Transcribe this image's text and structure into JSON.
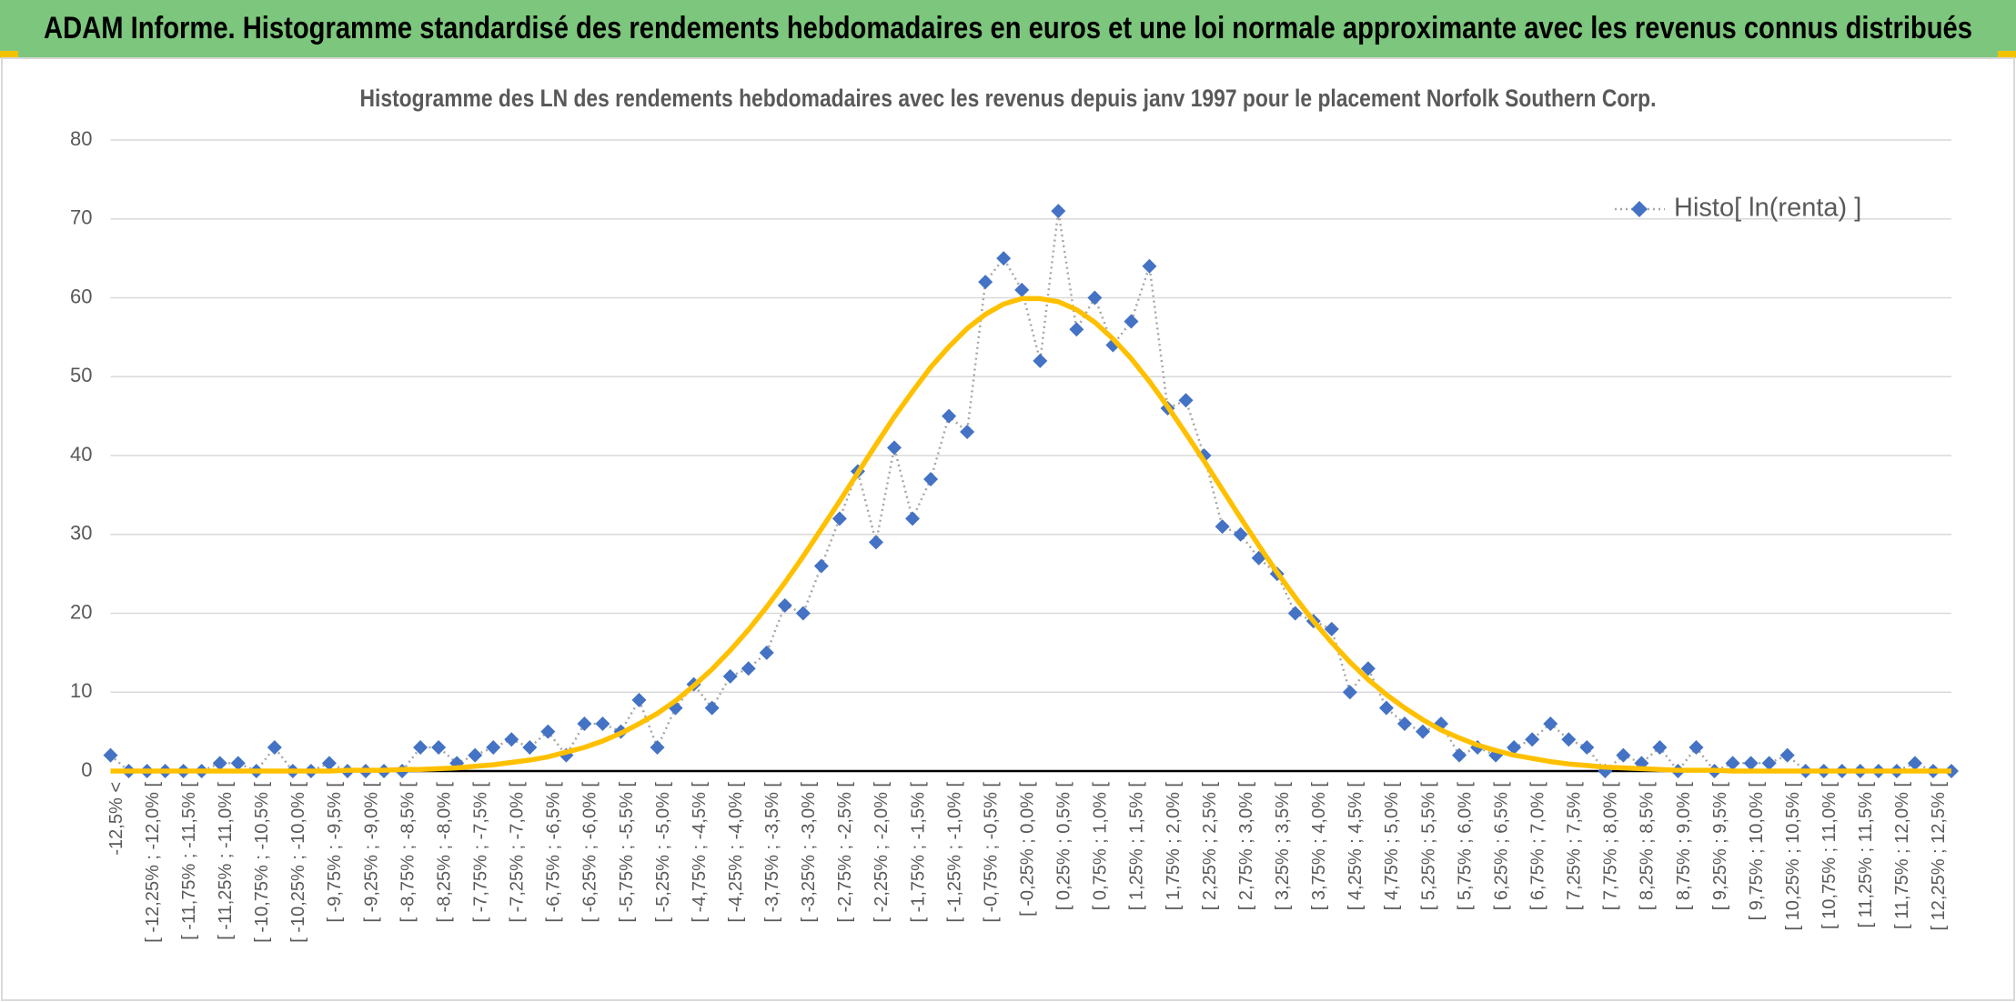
{
  "header": {
    "title": "ADAM Informe. Histogramme standardisé des rendements hebdomadaires en euros et une loi normale approximante avec les revenus connus distribués"
  },
  "chart_data": {
    "type": "line",
    "title": "Histogramme des LN des rendements hebdomadaires avec les revenus depuis janv 1997 pour le placement Norfolk Southern Corp.",
    "categories": [
      "-12,5% <",
      null,
      "[ -12,25% ; -12,0% [",
      null,
      "[ -11,75% ; -11,5% [",
      null,
      "[ -11,25% ; -11,0% [",
      null,
      "[ -10,75% ; -10,5% [",
      null,
      "[ -10,25% ; -10,0% [",
      null,
      "[ -9,75% ; -9,5% [",
      null,
      "[ -9,25% ; -9,0% [",
      null,
      "[ -8,75% ; -8,5% [",
      null,
      "[ -8,25% ; -8,0% [",
      null,
      "[ -7,75% ; -7,5% [",
      null,
      "[ -7,25% ; -7,0% [",
      null,
      "[ -6,75% ; -6,5% [",
      null,
      "[ -6,25% ; -6,0% [",
      null,
      "[ -5,75% ; -5,5% [",
      null,
      "[ -5,25% ; -5,0% [",
      null,
      "[ -4,75% ; -4,5% [",
      null,
      "[ -4,25% ; -4,0% [",
      null,
      "[ -3,75% ; -3,5% [",
      null,
      "[ -3,25% ; -3,0% [",
      null,
      "[ -2,75% ; -2,5% [",
      null,
      "[ -2,25% ; -2,0% [",
      null,
      "[ -1,75% ; -1,5% [",
      null,
      "[ -1,25% ; -1,0% [",
      null,
      "[ -0,75% ; -0,5% [",
      null,
      "[ -0,25% ; 0,0% [",
      null,
      "[ 0,25% ; 0,5% [",
      null,
      "[ 0,75% ; 1,0% [",
      null,
      "[ 1,25% ; 1,5% [",
      null,
      "[ 1,75% ; 2,0% [",
      null,
      "[ 2,25% ; 2,5% [",
      null,
      "[ 2,75% ; 3,0% [",
      null,
      "[ 3,25% ; 3,5% [",
      null,
      "[ 3,75% ; 4,0% [",
      null,
      "[ 4,25% ; 4,5% [",
      null,
      "[ 4,75% ; 5,0% [",
      null,
      "[ 5,25% ; 5,5% [",
      null,
      "[ 5,75% ; 6,0% [",
      null,
      "[ 6,25% ; 6,5% [",
      null,
      "[ 6,75% ; 7,0% [",
      null,
      "[ 7,25% ; 7,5% [",
      null,
      "[ 7,75% ; 8,0% [",
      null,
      "[ 8,25% ; 8,5% [",
      null,
      "[ 8,75% ; 9,0% [",
      null,
      "[ 9,25% ; 9,5% [",
      null,
      "[ 9,75% ; 10,0% [",
      null,
      "[ 10,25% ; 10,5% [",
      null,
      "[ 10,75% ; 11,0% [",
      null,
      "[ 11,25% ; 11,5% [",
      null,
      "[ 11,75% ; 12,0% [",
      null,
      "[ 12,25% ; 12,5% [",
      null
    ],
    "series": [
      {
        "name": "Histo[ ln(renta) ]",
        "color": "#4472c4",
        "style": "dotted-markers",
        "values": [
          2,
          0,
          0,
          0,
          0,
          0,
          1,
          1,
          0,
          3,
          0,
          0,
          1,
          0,
          0,
          0,
          0,
          3,
          3,
          1,
          2,
          3,
          4,
          3,
          5,
          2,
          6,
          6,
          5,
          9,
          3,
          8,
          11,
          8,
          12,
          13,
          15,
          21,
          20,
          26,
          32,
          38,
          29,
          41,
          32,
          37,
          45,
          43,
          62,
          65,
          61,
          52,
          71,
          56,
          60,
          54,
          57,
          64,
          46,
          47,
          40,
          31,
          30,
          27,
          25,
          20,
          19,
          18,
          10,
          13,
          8,
          6,
          5,
          6,
          2,
          3,
          2,
          3,
          4,
          6,
          4,
          3,
          0,
          2,
          1,
          3,
          0,
          3,
          0,
          1,
          1,
          1,
          2,
          0,
          0,
          0,
          0,
          0,
          0,
          1,
          0,
          0
        ]
      },
      {
        "color": "#ffc000",
        "style": "solid",
        "values": [
          0,
          0,
          0,
          0,
          0,
          0,
          0,
          0,
          0,
          0,
          0,
          0,
          0,
          0.1,
          0.1,
          0.1,
          0.2,
          0.2,
          0.3,
          0.4,
          0.6,
          0.8,
          1.1,
          1.4,
          1.8,
          2.4,
          3.0,
          3.8,
          4.8,
          6.0,
          7.3,
          8.9,
          10.8,
          12.9,
          15.3,
          17.9,
          20.8,
          23.9,
          27.2,
          30.7,
          34.2,
          37.8,
          41.4,
          44.9,
          48.1,
          51.2,
          53.8,
          56.1,
          57.9,
          59.2,
          59.9,
          59.9,
          59.5,
          58.5,
          56.9,
          54.8,
          52.3,
          49.4,
          46.2,
          42.8,
          39.3,
          35.7,
          32.1,
          28.6,
          25.2,
          22.0,
          19.0,
          16.3,
          13.8,
          11.6,
          9.7,
          8.0,
          6.5,
          5.2,
          4.2,
          3.3,
          2.6,
          2.0,
          1.6,
          1.2,
          0.9,
          0.7,
          0.5,
          0.4,
          0.3,
          0.2,
          0.1,
          0.1,
          0.1,
          0,
          0,
          0,
          0,
          0,
          0,
          0,
          0,
          0,
          0,
          0,
          0,
          0
        ]
      }
    ],
    "ylim": [
      0,
      80
    ],
    "yticks": [
      0,
      10,
      20,
      30,
      40,
      50,
      60,
      70,
      80
    ],
    "grid": true,
    "legend": "upper right"
  }
}
